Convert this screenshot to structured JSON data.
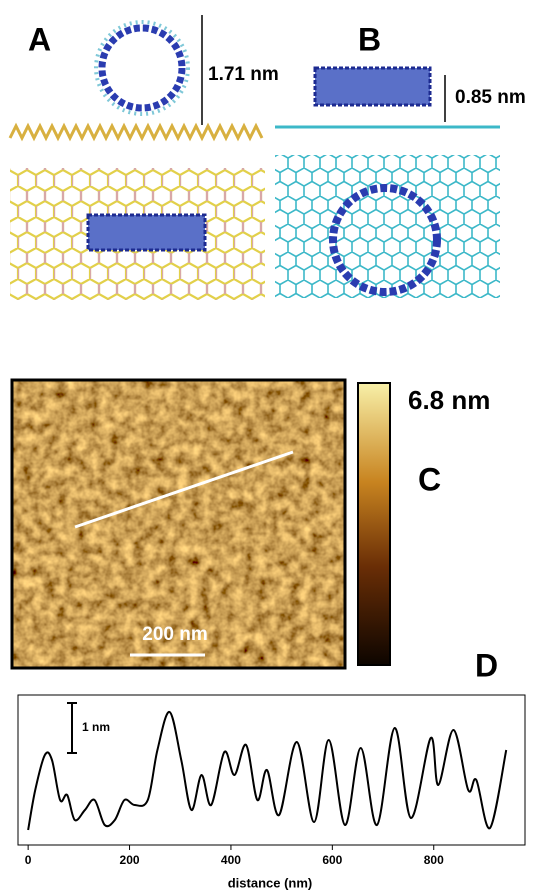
{
  "panels": {
    "A": {
      "label": "A",
      "height_label": "1.71 nm"
    },
    "B": {
      "label": "B",
      "height_label": "0.85 nm"
    },
    "C": {
      "label": "C",
      "colorbar_label": "6.8 nm",
      "scale_bar_label": "200 nm"
    }
  },
  "chart_data": {
    "type": "line",
    "label": "D",
    "x": [
      0,
      14,
      33,
      47,
      63,
      77,
      92,
      112,
      131,
      151,
      171,
      190,
      210,
      236,
      255,
      279,
      302,
      322,
      342,
      361,
      387,
      407,
      430,
      452,
      471,
      495,
      530,
      564,
      593,
      625,
      656,
      688,
      723,
      755,
      794,
      809,
      839,
      868,
      884,
      911,
      943
    ],
    "series": [
      {
        "color": "#000000",
        "values": [
          0.3,
          1.1,
          1.8,
          1.7,
          0.9,
          1.0,
          0.5,
          0.7,
          0.9,
          0.4,
          0.5,
          0.9,
          0.8,
          0.9,
          1.9,
          2.66,
          1.7,
          0.7,
          1.4,
          0.8,
          1.86,
          1.4,
          2.0,
          0.9,
          1.5,
          0.6,
          2.06,
          0.46,
          2.1,
          0.4,
          1.94,
          0.4,
          2.34,
          0.54,
          2.14,
          1.2,
          2.3,
          1.1,
          1.3,
          0.34,
          1.9
        ]
      }
    ],
    "xlim": [
      -20,
      980
    ],
    "xticks": [
      0,
      200,
      400,
      600,
      800
    ],
    "xlabel": "distance (nm)",
    "ylim": [
      0,
      3
    ],
    "scale_bar": {
      "value": 1,
      "label": "1 nm"
    }
  }
}
